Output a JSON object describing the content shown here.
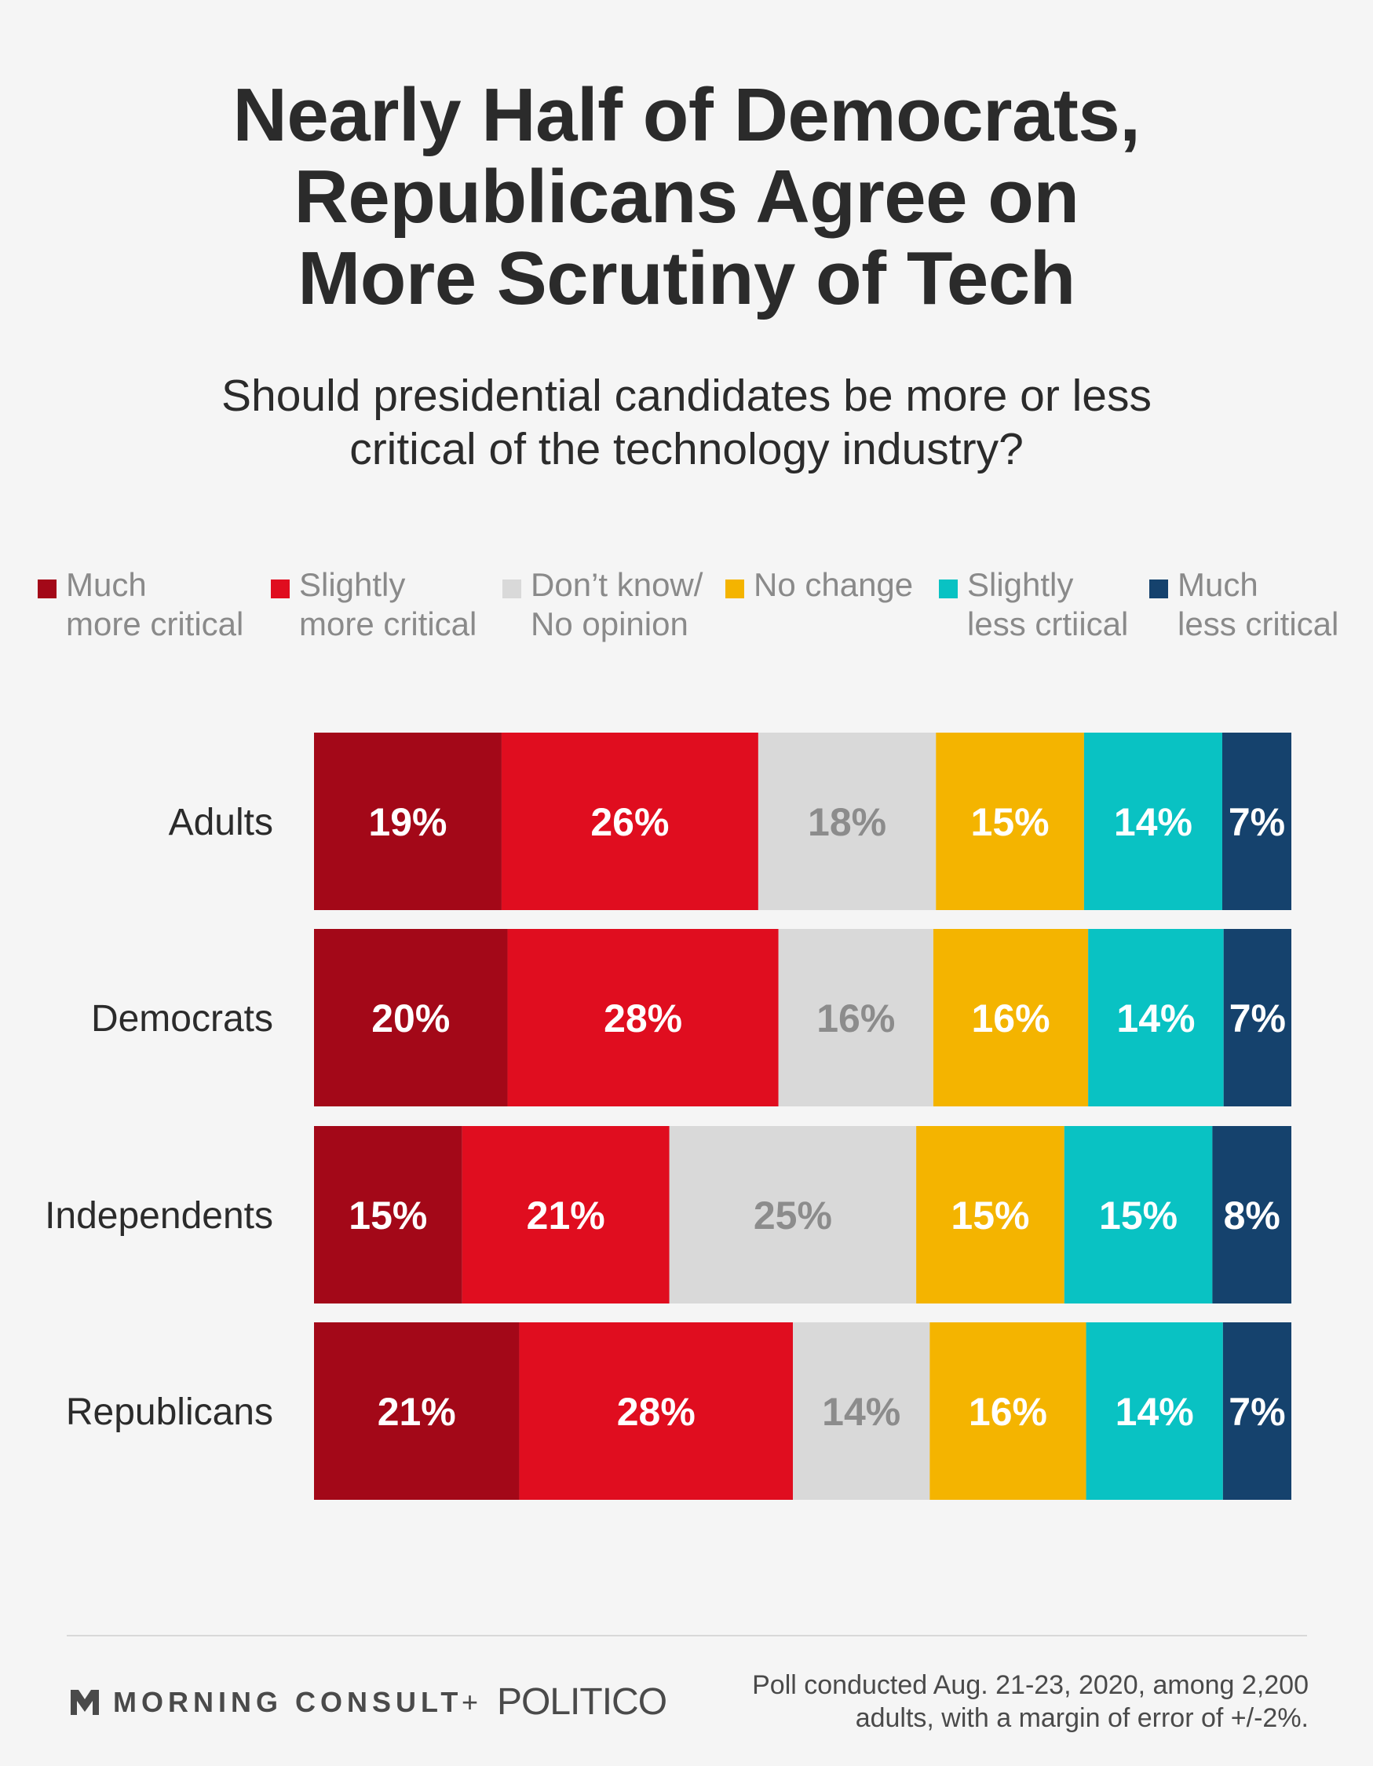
{
  "title_lines": [
    "Nearly Half of Democrats,",
    "Republicans Agree on",
    "More Scrutiny of Tech"
  ],
  "subtitle_lines": [
    "Should presidential candidates be more or less",
    "critical of the technology industry?"
  ],
  "legend": [
    {
      "lines": [
        "Much",
        "more critical"
      ],
      "color": "#a30818"
    },
    {
      "lines": [
        "Slightly",
        "more critical"
      ],
      "color": "#e00d1f"
    },
    {
      "lines": [
        "Don’t know/",
        "No opinion"
      ],
      "color": "#d9d9d9"
    },
    {
      "lines": [
        "No change",
        ""
      ],
      "color": "#f4b400"
    },
    {
      "lines": [
        "Slightly",
        "less crtiical"
      ],
      "color": "#09c2c3"
    },
    {
      "lines": [
        "Much",
        "less critical"
      ],
      "color": "#15426d"
    }
  ],
  "chart_data": {
    "type": "bar",
    "orientation": "horizontal",
    "stacked": true,
    "value_unit": "%",
    "categories": [
      "Adults",
      "Democrats",
      "Independents",
      "Republicans"
    ],
    "series": [
      {
        "name": "Much more critical",
        "color": "#a30818",
        "label_color": "#ffffff",
        "values": [
          19,
          20,
          15,
          21
        ]
      },
      {
        "name": "Slightly more critical",
        "color": "#e00d1f",
        "label_color": "#ffffff",
        "values": [
          26,
          28,
          21,
          28
        ]
      },
      {
        "name": "Don’t know/ No opinion",
        "color": "#d9d9d9",
        "label_color": "#8c8c8c",
        "values": [
          18,
          16,
          25,
          14
        ]
      },
      {
        "name": "No change",
        "color": "#f4b400",
        "label_color": "#ffffff",
        "values": [
          15,
          16,
          15,
          16
        ]
      },
      {
        "name": "Slightly less crtiical",
        "color": "#09c2c3",
        "label_color": "#ffffff",
        "values": [
          14,
          14,
          15,
          14
        ]
      },
      {
        "name": "Much less critical",
        "color": "#15426d",
        "label_color": "#ffffff",
        "values": [
          7,
          7,
          8,
          7
        ]
      }
    ],
    "legend_position": "top",
    "grid": false
  },
  "footer": {
    "brand_left": "MORNING CONSULT",
    "plus": "+",
    "brand_right": "POLITICO",
    "note_lines": [
      "Poll conducted Aug. 21-23, 2020, among 2,200",
      "adults, with a margin of error of +/-2%."
    ]
  }
}
